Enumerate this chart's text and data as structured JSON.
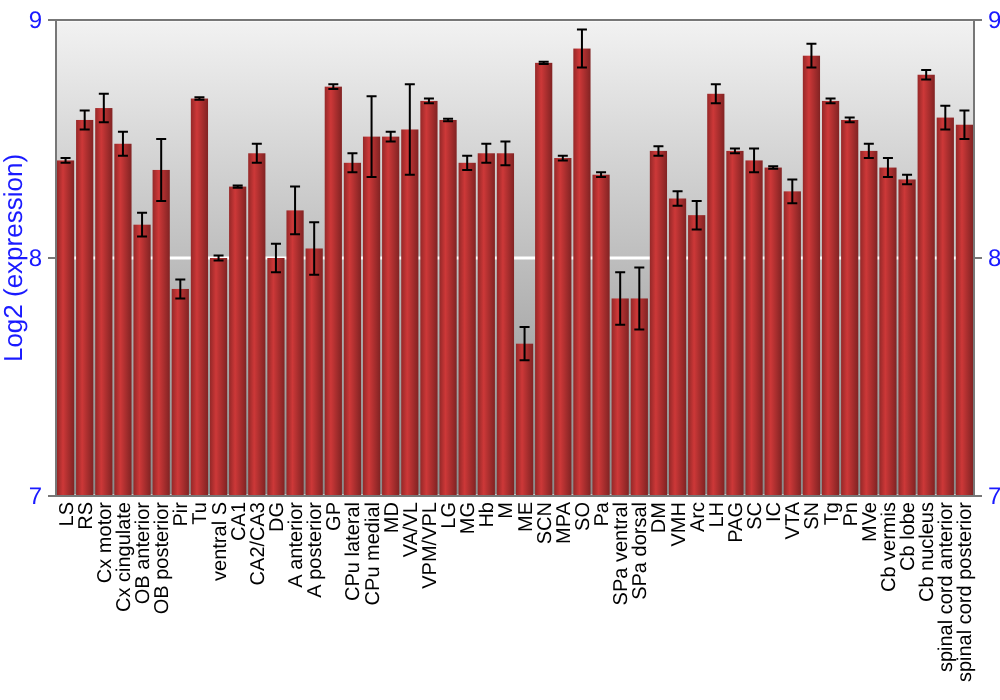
{
  "chart_data": {
    "type": "bar",
    "ylabel": "Log2 (expression)",
    "categories": [
      "LS",
      "RS",
      "Cx motor",
      "Cx cingulate",
      "OB anterior",
      "OB posterior",
      "Pir",
      "Tu",
      "ventral S",
      "CA1",
      "CA2/CA3",
      "DG",
      "A anterior",
      "A posterior",
      "GP",
      "CPu lateral",
      "CPu medial",
      "MD",
      "VA/VL",
      "VPM/VPL",
      "LG",
      "MG",
      "Hb",
      "M",
      "ME",
      "SCN",
      "MPA",
      "SO",
      "Pa",
      "SPa ventral",
      "SPa dorsal",
      "DM",
      "VMH",
      "Arc",
      "LH",
      "PAG",
      "SC",
      "IC",
      "VTA",
      "SN",
      "Tg",
      "Pn",
      "MVe",
      "Cb vermis",
      "Cb lobe",
      "Cb nucleus",
      "spinal cord anterior",
      "spinal cord posterior"
    ],
    "values": [
      8.41,
      8.58,
      8.63,
      8.48,
      8.14,
      8.37,
      7.87,
      8.67,
      8.0,
      8.3,
      8.44,
      8.0,
      8.2,
      8.04,
      8.72,
      8.4,
      8.51,
      8.51,
      8.54,
      8.66,
      8.58,
      8.4,
      8.44,
      8.44,
      7.64,
      8.82,
      8.42,
      8.88,
      8.35,
      7.83,
      7.83,
      8.45,
      8.25,
      8.18,
      8.69,
      8.45,
      8.41,
      8.38,
      8.28,
      8.85,
      8.66,
      8.58,
      8.45,
      8.38,
      8.33,
      8.77,
      8.59,
      8.56
    ],
    "errors": [
      0.01,
      0.04,
      0.06,
      0.05,
      0.05,
      0.13,
      0.04,
      0.005,
      0.01,
      0.005,
      0.04,
      0.06,
      0.1,
      0.11,
      0.01,
      0.04,
      0.17,
      0.02,
      0.19,
      0.01,
      0.005,
      0.03,
      0.04,
      0.05,
      0.07,
      0.005,
      0.01,
      0.08,
      0.01,
      0.11,
      0.13,
      0.02,
      0.03,
      0.06,
      0.04,
      0.01,
      0.05,
      0.005,
      0.05,
      0.05,
      0.01,
      0.01,
      0.03,
      0.04,
      0.02,
      0.02,
      0.05,
      0.06
    ],
    "color": "#b83232",
    "ylim": [
      7,
      9
    ],
    "yticks": [
      7,
      8,
      9
    ],
    "y2lim": [
      7,
      9
    ],
    "y2ticks": [
      7,
      8,
      9
    ],
    "grid": "y"
  }
}
